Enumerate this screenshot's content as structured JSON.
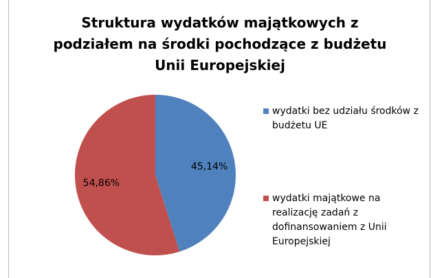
{
  "chart_data": {
    "type": "pie",
    "title": "Struktura wydatków majątkowych z podziałem na środki pochodzące z budżetu Unii Europejskiej",
    "categories": [
      "wydatki bez udziału środków z budżetu UE",
      "wydatki majątkowe na realizację zadań z dofinansowaniem z Unii Europejskiej"
    ],
    "values": [
      45.14,
      54.86
    ],
    "value_labels": [
      "45,14%",
      "54,86%"
    ],
    "colors": [
      "#4f81bd",
      "#c0504d"
    ],
    "legend": "right"
  }
}
